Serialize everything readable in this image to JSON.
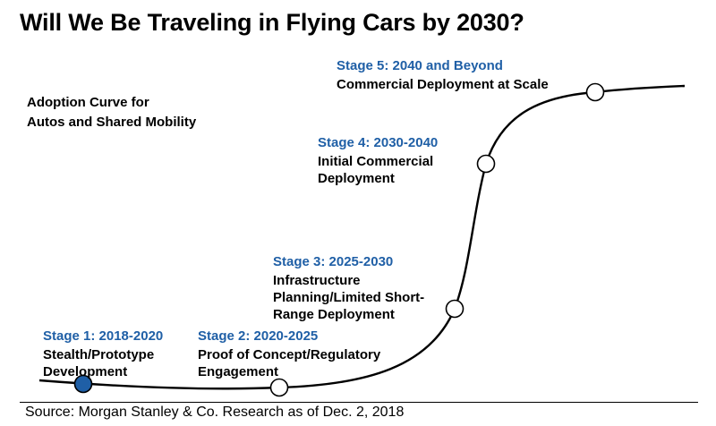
{
  "title": "Will We Be Traveling in Flying Cars by 2030?",
  "subtitle": {
    "line1": "Adoption Curve for",
    "line2": "Autos and Shared Mobility"
  },
  "colors": {
    "stage_heading": "#1f5fa6",
    "active_marker": "#1f5fa6",
    "curve": "#000000"
  },
  "stages": [
    {
      "heading": "Stage 1: 2018-2020",
      "lines": [
        "Stealth/Prototype",
        "Development"
      ],
      "active": true
    },
    {
      "heading": "Stage 2: 2020-2025",
      "lines": [
        "Proof of Concept/Regulatory",
        "Engagement"
      ],
      "active": false
    },
    {
      "heading": "Stage 3: 2025-2030",
      "lines": [
        "Infrastructure",
        "Planning/Limited Short-",
        "Range Deployment"
      ],
      "active": false
    },
    {
      "heading": "Stage 4: 2030-2040",
      "lines": [
        "Initial Commercial",
        "Deployment"
      ],
      "active": false
    },
    {
      "heading": "Stage 5: 2040 and Beyond",
      "lines": [
        "Commercial Deployment at Scale"
      ],
      "active": false
    }
  ],
  "source": "Source: Morgan Stanley & Co. Research as of Dec. 2, 2018"
}
